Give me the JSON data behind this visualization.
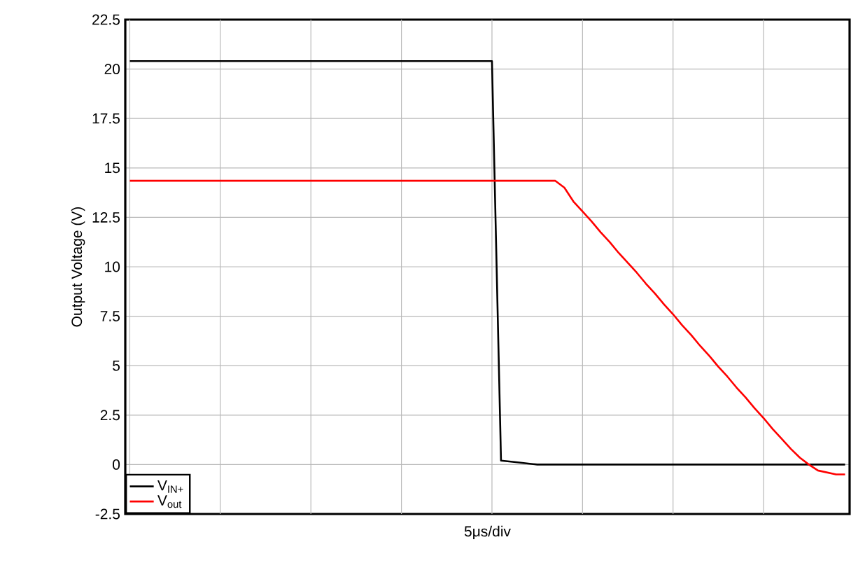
{
  "chart_data": {
    "type": "line",
    "xlabel": "5μs/div",
    "ylabel": "Output Voltage (V)",
    "categories": [
      null,
      null,
      null,
      null,
      null,
      null,
      null,
      null,
      null,
      null,
      null,
      null,
      null,
      null,
      null,
      null,
      null,
      null,
      null,
      null,
      null,
      null,
      null,
      null,
      null,
      null,
      null,
      null,
      null,
      null,
      null,
      null,
      null,
      null,
      null,
      null,
      null,
      null,
      null,
      null,
      null,
      null,
      null,
      null,
      null,
      null,
      null,
      null,
      null,
      null,
      null,
      null,
      null,
      null,
      null,
      null,
      null,
      null,
      null,
      null,
      null,
      null,
      null,
      null,
      null,
      null,
      null,
      null,
      null,
      null,
      null,
      null,
      null,
      null,
      null,
      null,
      null,
      null,
      null,
      null
    ],
    "ylim": [
      -2.5,
      22.5
    ],
    "yticks": [
      -2.5,
      0,
      2.5,
      5,
      7.5,
      10,
      12.5,
      15,
      17.5,
      20,
      22.5
    ],
    "tick_labels": "y",
    "grid": true,
    "legend": "bottom left",
    "series": [
      {
        "name": "V$_{IN+}$",
        "color": "#000000",
        "values": [
          20.4,
          20.4,
          20.4,
          20.4,
          20.4,
          20.4,
          20.4,
          20.4,
          20.4,
          20.4,
          20.4,
          20.4,
          20.4,
          20.4,
          20.4,
          20.4,
          20.4,
          20.4,
          20.4,
          20.4,
          20.4,
          20.4,
          20.4,
          20.4,
          20.4,
          20.4,
          20.4,
          20.4,
          20.4,
          20.4,
          20.4,
          20.4,
          20.4,
          20.4,
          20.4,
          20.4,
          20.4,
          20.4,
          20.4,
          20.4,
          20.4,
          0.2,
          0.15,
          0.1,
          0.05,
          0,
          0,
          0,
          0,
          0,
          0,
          0,
          0,
          0,
          0,
          0,
          0,
          0,
          0,
          0,
          0,
          0,
          0,
          0,
          0,
          0,
          0,
          0,
          0,
          0,
          0,
          0,
          0,
          0,
          0,
          0,
          0,
          0,
          0,
          0
        ]
      },
      {
        "name": "V$_{out}$",
        "color": "#ff0000",
        "values": [
          14.35,
          14.35,
          14.35,
          14.35,
          14.35,
          14.35,
          14.35,
          14.35,
          14.35,
          14.35,
          14.35,
          14.35,
          14.35,
          14.35,
          14.35,
          14.35,
          14.35,
          14.35,
          14.35,
          14.35,
          14.35,
          14.35,
          14.35,
          14.35,
          14.35,
          14.35,
          14.35,
          14.35,
          14.35,
          14.35,
          14.35,
          14.35,
          14.35,
          14.35,
          14.35,
          14.35,
          14.35,
          14.35,
          14.35,
          14.35,
          14.35,
          14.35,
          14.35,
          14.35,
          14.35,
          14.35,
          14.35,
          14.35,
          14.0,
          13.3,
          12.8,
          12.3,
          11.75,
          11.25,
          10.7,
          10.2,
          9.7,
          9.15,
          8.65,
          8.1,
          7.6,
          7.05,
          6.55,
          6.0,
          5.5,
          4.95,
          4.45,
          3.9,
          3.4,
          2.85,
          2.35,
          1.8,
          1.3,
          0.8,
          0.35,
          0,
          -0.3,
          -0.4,
          -0.5,
          -0.5
        ]
      }
    ]
  }
}
